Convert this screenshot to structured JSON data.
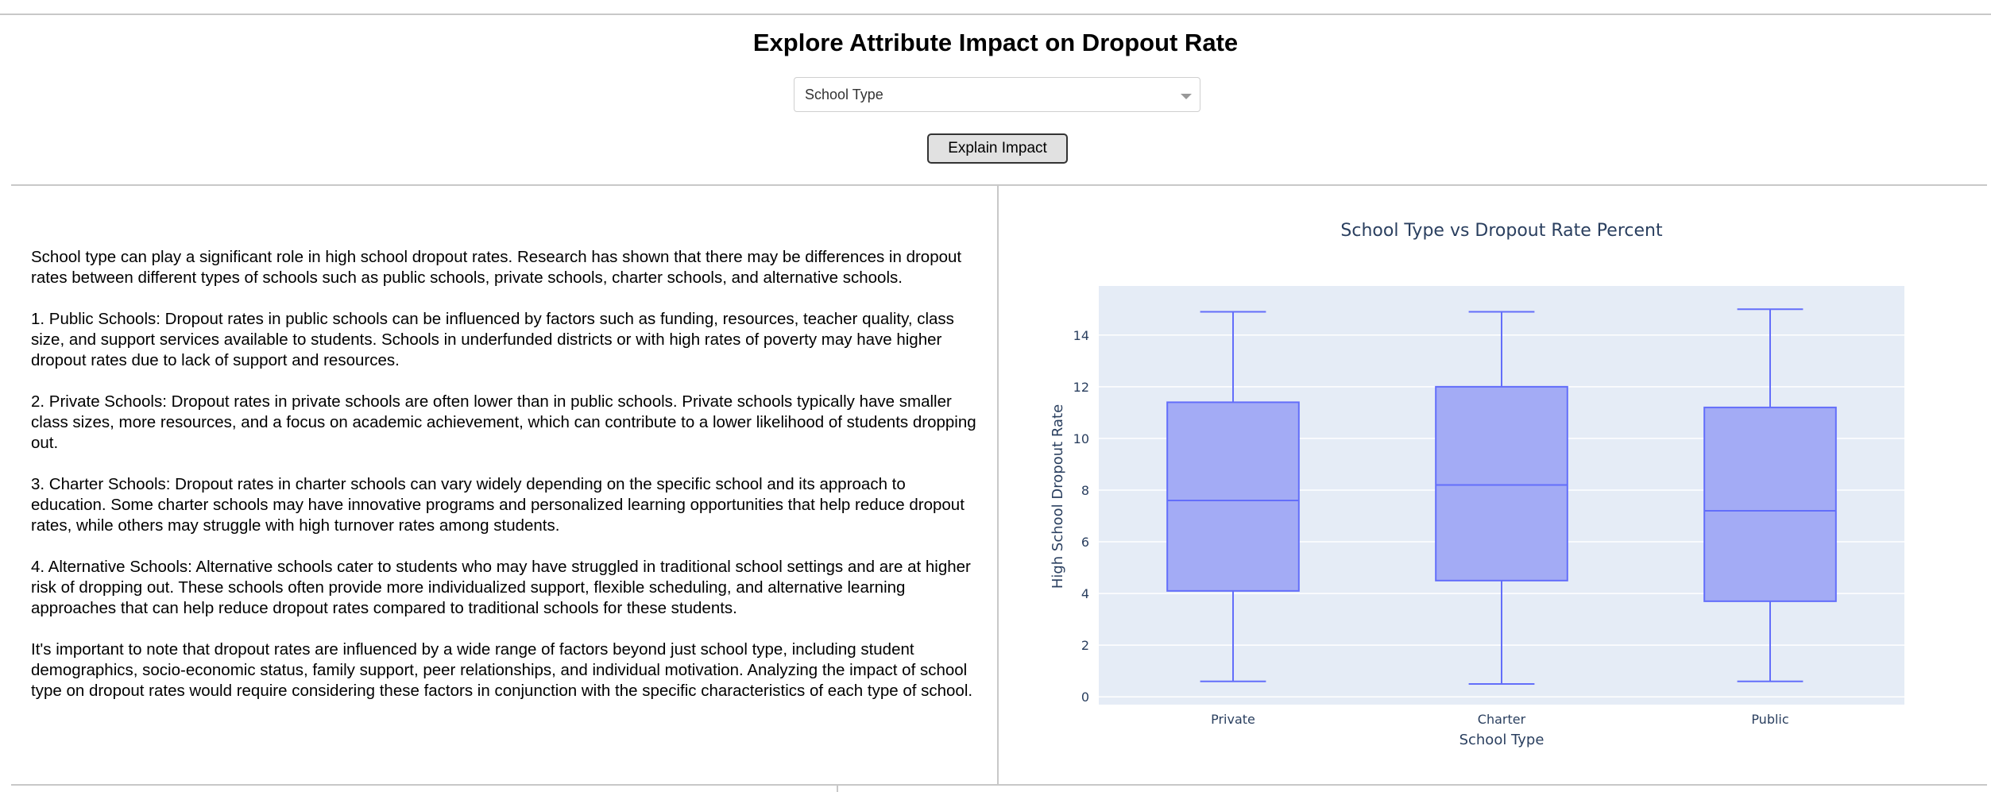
{
  "header": {
    "title": "Explore Attribute Impact on Dropout Rate",
    "dropdown_value": "School Type",
    "button_label": "Explain Impact"
  },
  "explanation": {
    "paragraphs": [
      "School type can play a significant role in high school dropout rates. Research has shown that there may be differences in dropout rates between different types of schools such as public schools, private schools, charter schools, and alternative schools.",
      "1. Public Schools: Dropout rates in public schools can be influenced by factors such as funding, resources, teacher quality, class size, and support services available to students. Schools in underfunded districts or with high rates of poverty may have higher dropout rates due to lack of support and resources.",
      "2. Private Schools: Dropout rates in private schools are often lower than in public schools. Private schools typically have smaller class sizes, more resources, and a focus on academic achievement, which can contribute to a lower likelihood of students dropping out.",
      "3. Charter Schools: Dropout rates in charter schools can vary widely depending on the specific school and its approach to education. Some charter schools may have innovative programs and personalized learning opportunities that help reduce dropout rates, while others may struggle with high turnover rates among students.",
      "4. Alternative Schools: Alternative schools cater to students who may have struggled in traditional school settings and are at higher risk of dropping out. These schools often provide more individualized support, flexible scheduling, and alternative learning approaches that can help reduce dropout rates compared to traditional schools for these students.",
      "It's important to note that dropout rates are influenced by a wide range of factors beyond just school type, including student demographics, socio-economic status, family support, peer relationships, and individual motivation. Analyzing the impact of school type on dropout rates would require considering these factors in conjunction with the specific characteristics of each type of school."
    ]
  },
  "chart_data": {
    "type": "box",
    "title": "School Type vs Dropout Rate Percent",
    "xlabel": "School Type",
    "ylabel": "High School Dropout Rate",
    "categories": [
      "Private",
      "Charter",
      "Public"
    ],
    "boxes": [
      {
        "category": "Private",
        "min": 0.6,
        "q1": 4.1,
        "median": 7.6,
        "q3": 11.4,
        "max": 14.9
      },
      {
        "category": "Charter",
        "min": 0.5,
        "q1": 4.5,
        "median": 8.2,
        "q3": 12.0,
        "max": 14.9
      },
      {
        "category": "Public",
        "min": 0.6,
        "q1": 3.7,
        "median": 7.2,
        "q3": 11.2,
        "max": 15.0
      }
    ],
    "ylim": [
      -0.3,
      15.9
    ],
    "yticks": [
      0,
      2,
      4,
      6,
      8,
      10,
      12,
      14
    ],
    "grid": true,
    "colors": {
      "box_fill": "#a3abf5",
      "box_line": "#636efa",
      "plot_bg": "#e5ecf6",
      "grid": "#ffffff",
      "text": "#2a3f5f"
    }
  }
}
